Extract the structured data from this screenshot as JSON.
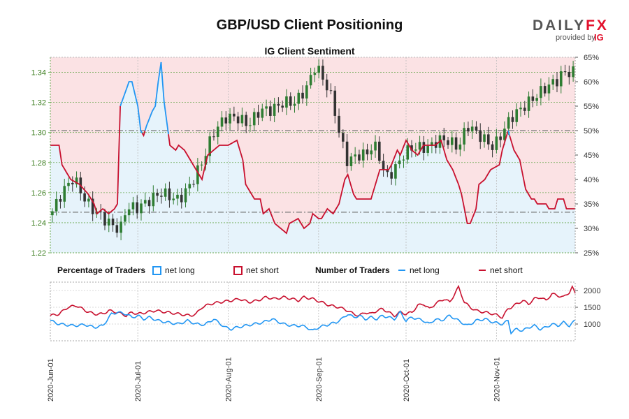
{
  "chart_data": {
    "type": "candlestick-with-sentiment",
    "title": "GBP/USD Client Positioning",
    "subtitle": "IG Client Sentiment",
    "logo": {
      "brand_left": "DAILY",
      "brand_right": "FX",
      "provided_by": "provided by",
      "provider": "IG"
    },
    "x_range": [
      "2020-06-01",
      "2020-11-27"
    ],
    "x_tick_labels": [
      "2020-Jun-01",
      "2020-Jul-01",
      "2020-Aug-01",
      "2020-Sep-01",
      "2020-Oct-01",
      "2020-Nov-01"
    ],
    "x_ticks_day_index": [
      0,
      30,
      61,
      92,
      122,
      153
    ],
    "price_axis": {
      "ylim": [
        1.22,
        1.35
      ],
      "ticks": [
        1.22,
        1.24,
        1.26,
        1.28,
        1.3,
        1.32,
        1.34
      ],
      "tick_labels": [
        "1.22",
        "1.24",
        "1.26",
        "1.28",
        "1.30",
        "1.32",
        "1.34"
      ]
    },
    "pct_axis": {
      "ylim": [
        25,
        65
      ],
      "ticks": [
        25,
        30,
        35,
        40,
        45,
        50,
        55,
        60,
        65
      ],
      "tick_labels": [
        "25%",
        "30%",
        "35%",
        "40%",
        "45%",
        "50%",
        "55%",
        "60%",
        "65%"
      ],
      "ref_lines": [
        50,
        33.3
      ]
    },
    "count_axis": {
      "ylim": [
        500,
        2250
      ],
      "ticks": [
        1000,
        1500,
        2000
      ],
      "tick_labels": [
        "1000",
        "1500",
        "2000"
      ]
    },
    "legend": {
      "pct_title": "Percentage of Traders",
      "pct_long": "net long",
      "pct_short": "net short",
      "num_title": "Number of Traders",
      "num_long": "net long",
      "num_short": "net short"
    },
    "colors": {
      "long": "#2196f3",
      "short": "#c8102e",
      "candle_up": "#2e7d32",
      "candle_down": "#333333",
      "long_fill": "#e6f3fb",
      "short_fill": "#fbe2e4"
    },
    "price_close_keypoints": [
      [
        0,
        1.245
      ],
      [
        4,
        1.26
      ],
      [
        8,
        1.27
      ],
      [
        12,
        1.255
      ],
      [
        14,
        1.25
      ],
      [
        17,
        1.245
      ],
      [
        20,
        1.24
      ],
      [
        24,
        1.235
      ],
      [
        26,
        1.25
      ],
      [
        30,
        1.25
      ],
      [
        34,
        1.255
      ],
      [
        38,
        1.26
      ],
      [
        44,
        1.255
      ],
      [
        48,
        1.265
      ],
      [
        52,
        1.28
      ],
      [
        56,
        1.3
      ],
      [
        60,
        1.31
      ],
      [
        64,
        1.31
      ],
      [
        68,
        1.305
      ],
      [
        72,
        1.315
      ],
      [
        76,
        1.315
      ],
      [
        80,
        1.32
      ],
      [
        84,
        1.32
      ],
      [
        88,
        1.33
      ],
      [
        91,
        1.345
      ],
      [
        95,
        1.33
      ],
      [
        97,
        1.32
      ],
      [
        99,
        1.3
      ],
      [
        102,
        1.28
      ],
      [
        105,
        1.285
      ],
      [
        108,
        1.285
      ],
      [
        110,
        1.29
      ],
      [
        112,
        1.29
      ],
      [
        115,
        1.27
      ],
      [
        118,
        1.275
      ],
      [
        121,
        1.285
      ],
      [
        124,
        1.29
      ],
      [
        127,
        1.29
      ],
      [
        130,
        1.29
      ],
      [
        133,
        1.295
      ],
      [
        136,
        1.295
      ],
      [
        140,
        1.29
      ],
      [
        143,
        1.305
      ],
      [
        146,
        1.3
      ],
      [
        149,
        1.295
      ],
      [
        152,
        1.29
      ],
      [
        155,
        1.3
      ],
      [
        158,
        1.31
      ],
      [
        161,
        1.315
      ],
      [
        164,
        1.32
      ],
      [
        167,
        1.325
      ],
      [
        170,
        1.33
      ],
      [
        174,
        1.335
      ],
      [
        176,
        1.34
      ],
      [
        179,
        1.34
      ]
    ],
    "net_long_pct_keypoints": [
      [
        0,
        47
      ],
      [
        3,
        47
      ],
      [
        4,
        43
      ],
      [
        7,
        40
      ],
      [
        10,
        39
      ],
      [
        13,
        37
      ],
      [
        15,
        35
      ],
      [
        16,
        33
      ],
      [
        18,
        34
      ],
      [
        20,
        33
      ],
      [
        22,
        34
      ],
      [
        23,
        35
      ],
      [
        24,
        55
      ],
      [
        27,
        60
      ],
      [
        28,
        60
      ],
      [
        30,
        55
      ],
      [
        31,
        50
      ],
      [
        32,
        49
      ],
      [
        33,
        51
      ],
      [
        35,
        54
      ],
      [
        36,
        55
      ],
      [
        37,
        60
      ],
      [
        38,
        64
      ],
      [
        39,
        56
      ],
      [
        41,
        47
      ],
      [
        43,
        46
      ],
      [
        44,
        47
      ],
      [
        46,
        46
      ],
      [
        47,
        45
      ],
      [
        48,
        44
      ],
      [
        50,
        42
      ],
      [
        52,
        40
      ],
      [
        54,
        45
      ],
      [
        56,
        46
      ],
      [
        58,
        47
      ],
      [
        59,
        47
      ],
      [
        61,
        47
      ],
      [
        64,
        48
      ],
      [
        66,
        44
      ],
      [
        67,
        39
      ],
      [
        70,
        36
      ],
      [
        72,
        36
      ],
      [
        73,
        33
      ],
      [
        75,
        34
      ],
      [
        77,
        31
      ],
      [
        79,
        30
      ],
      [
        81,
        29
      ],
      [
        82,
        31
      ],
      [
        85,
        32
      ],
      [
        87,
        30
      ],
      [
        89,
        31
      ],
      [
        90,
        33
      ],
      [
        92,
        32
      ],
      [
        93,
        32
      ],
      [
        95,
        34
      ],
      [
        97,
        33
      ],
      [
        99,
        35
      ],
      [
        101,
        40
      ],
      [
        102,
        41
      ],
      [
        104,
        37
      ],
      [
        105,
        36
      ],
      [
        107,
        36
      ],
      [
        110,
        36
      ],
      [
        111,
        38
      ],
      [
        112,
        40
      ],
      [
        113,
        42
      ],
      [
        116,
        42
      ],
      [
        117,
        43
      ],
      [
        119,
        46
      ],
      [
        120,
        45
      ],
      [
        122,
        48
      ],
      [
        124,
        46
      ],
      [
        126,
        45
      ],
      [
        128,
        47
      ],
      [
        130,
        47
      ],
      [
        132,
        47
      ],
      [
        134,
        48
      ],
      [
        136,
        44
      ],
      [
        138,
        42
      ],
      [
        140,
        39
      ],
      [
        141,
        37
      ],
      [
        142,
        34
      ],
      [
        143,
        31
      ],
      [
        144,
        31
      ],
      [
        146,
        34
      ],
      [
        147,
        39
      ],
      [
        149,
        40
      ],
      [
        150,
        41
      ],
      [
        151,
        42
      ],
      [
        154,
        43
      ],
      [
        155,
        46
      ],
      [
        156,
        48
      ],
      [
        157,
        50
      ],
      [
        158,
        48
      ],
      [
        159,
        46
      ],
      [
        161,
        44
      ],
      [
        162,
        41
      ],
      [
        163,
        38
      ],
      [
        165,
        36
      ],
      [
        166,
        36
      ],
      [
        167,
        35
      ],
      [
        168,
        35
      ],
      [
        170,
        35
      ],
      [
        171,
        34
      ],
      [
        173,
        34
      ],
      [
        174,
        36
      ],
      [
        176,
        36
      ],
      [
        177,
        34
      ],
      [
        179,
        34
      ],
      [
        180,
        34
      ]
    ],
    "net_long_count_keypoints": [
      [
        0,
        1100
      ],
      [
        3,
        1000
      ],
      [
        8,
        950
      ],
      [
        12,
        980
      ],
      [
        15,
        900
      ],
      [
        18,
        950
      ],
      [
        21,
        1300
      ],
      [
        23,
        1350
      ],
      [
        26,
        1300
      ],
      [
        28,
        1200
      ],
      [
        30,
        1250
      ],
      [
        32,
        1150
      ],
      [
        34,
        1200
      ],
      [
        37,
        1100
      ],
      [
        40,
        1050
      ],
      [
        44,
        1000
      ],
      [
        47,
        1100
      ],
      [
        50,
        1000
      ],
      [
        53,
        980
      ],
      [
        56,
        1150
      ],
      [
        60,
        900
      ],
      [
        62,
        850
      ],
      [
        64,
        900
      ],
      [
        67,
        950
      ],
      [
        70,
        1000
      ],
      [
        73,
        1050
      ],
      [
        76,
        1150
      ],
      [
        80,
        1000
      ],
      [
        83,
        950
      ],
      [
        86,
        950
      ],
      [
        88,
        900
      ],
      [
        90,
        800
      ],
      [
        92,
        900
      ],
      [
        94,
        950
      ],
      [
        96,
        1000
      ],
      [
        98,
        1050
      ],
      [
        100,
        1150
      ],
      [
        102,
        1300
      ],
      [
        104,
        1200
      ],
      [
        106,
        1250
      ],
      [
        108,
        1150
      ],
      [
        110,
        1200
      ],
      [
        112,
        1150
      ],
      [
        114,
        1250
      ],
      [
        116,
        1200
      ],
      [
        118,
        1150
      ],
      [
        120,
        1350
      ],
      [
        122,
        1100
      ],
      [
        124,
        1200
      ],
      [
        126,
        1150
      ],
      [
        128,
        1100
      ],
      [
        130,
        1000
      ],
      [
        132,
        1150
      ],
      [
        134,
        1100
      ],
      [
        137,
        1250
      ],
      [
        140,
        1100
      ],
      [
        143,
        950
      ],
      [
        146,
        1100
      ],
      [
        149,
        1150
      ],
      [
        152,
        1050
      ],
      [
        155,
        1000
      ],
      [
        157,
        1100
      ],
      [
        158,
        750
      ],
      [
        160,
        850
      ],
      [
        162,
        800
      ],
      [
        164,
        900
      ],
      [
        166,
        950
      ],
      [
        168,
        850
      ],
      [
        170,
        900
      ],
      [
        172,
        1000
      ],
      [
        174,
        950
      ],
      [
        176,
        1050
      ],
      [
        178,
        950
      ],
      [
        180,
        1100
      ]
    ],
    "net_short_count_keypoints": [
      [
        0,
        1250
      ],
      [
        3,
        1300
      ],
      [
        6,
        1500
      ],
      [
        9,
        1550
      ],
      [
        12,
        1400
      ],
      [
        15,
        1300
      ],
      [
        18,
        1300
      ],
      [
        20,
        1400
      ],
      [
        23,
        1350
      ],
      [
        26,
        1250
      ],
      [
        28,
        1350
      ],
      [
        30,
        1300
      ],
      [
        33,
        1350
      ],
      [
        36,
        1400
      ],
      [
        40,
        1350
      ],
      [
        44,
        1300
      ],
      [
        48,
        1250
      ],
      [
        50,
        1300
      ],
      [
        52,
        1500
      ],
      [
        55,
        1600
      ],
      [
        58,
        1650
      ],
      [
        62,
        1700
      ],
      [
        65,
        1750
      ],
      [
        68,
        1650
      ],
      [
        71,
        1700
      ],
      [
        74,
        1800
      ],
      [
        77,
        1750
      ],
      [
        80,
        1800
      ],
      [
        83,
        1750
      ],
      [
        85,
        1700
      ],
      [
        87,
        1800
      ],
      [
        90,
        1750
      ],
      [
        93,
        1650
      ],
      [
        96,
        1550
      ],
      [
        99,
        1500
      ],
      [
        102,
        1400
      ],
      [
        104,
        1300
      ],
      [
        106,
        1250
      ],
      [
        108,
        1350
      ],
      [
        110,
        1300
      ],
      [
        112,
        1400
      ],
      [
        114,
        1450
      ],
      [
        116,
        1350
      ],
      [
        118,
        1250
      ],
      [
        120,
        1350
      ],
      [
        122,
        1300
      ],
      [
        124,
        1350
      ],
      [
        126,
        1550
      ],
      [
        128,
        1600
      ],
      [
        130,
        1450
      ],
      [
        132,
        1600
      ],
      [
        135,
        1750
      ],
      [
        137,
        1650
      ],
      [
        140,
        2100
      ],
      [
        142,
        1650
      ],
      [
        144,
        1500
      ],
      [
        146,
        1400
      ],
      [
        149,
        1350
      ],
      [
        152,
        1300
      ],
      [
        155,
        1200
      ],
      [
        157,
        1450
      ],
      [
        159,
        1550
      ],
      [
        162,
        1700
      ],
      [
        164,
        1600
      ],
      [
        166,
        1750
      ],
      [
        168,
        1800
      ],
      [
        170,
        1700
      ],
      [
        172,
        1900
      ],
      [
        174,
        1850
      ],
      [
        176,
        1800
      ],
      [
        178,
        1950
      ],
      [
        179,
        2100
      ],
      [
        180,
        1900
      ]
    ],
    "num_candles": 130
  }
}
